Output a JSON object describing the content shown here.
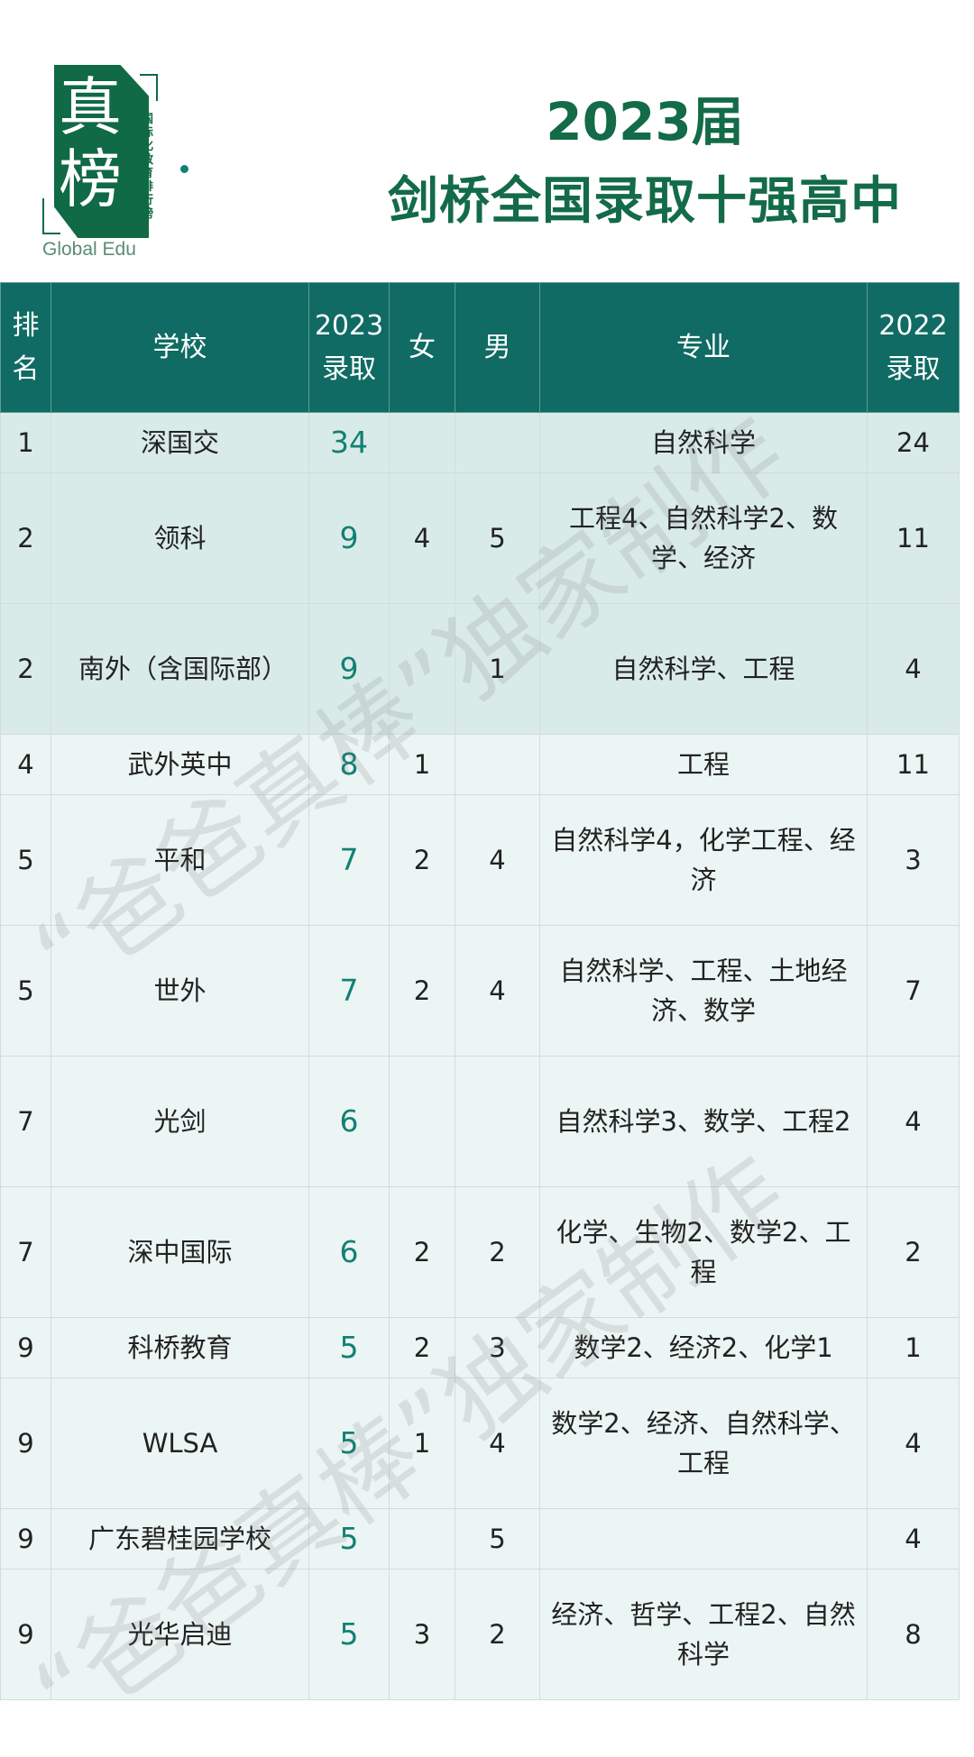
{
  "logo": {
    "chars": [
      "真",
      "榜"
    ],
    "subtitle": "国际化教育排行榜",
    "english": "Global Edu"
  },
  "title": {
    "line1": "2023届",
    "line2": "剑桥全国录取十强高中"
  },
  "watermark": "“爸爸真棒”独家制作",
  "colors": {
    "header_bg": "#0f6b63",
    "title": "#136b47",
    "highlight_number": "#138074",
    "top_rows_bg": "#d9ebe9",
    "rows_bg": "#ebf5f3"
  },
  "table": {
    "headers": [
      "排名",
      "学校",
      "2023录取",
      "女",
      "男",
      "专业",
      "2022录取"
    ],
    "rows": [
      {
        "rank": "1",
        "school": "深国交",
        "y2023": "34",
        "female": "",
        "male": "",
        "major": "自然科学",
        "y2022": "24"
      },
      {
        "rank": "2",
        "school": "领科",
        "y2023": "9",
        "female": "4",
        "male": "5",
        "major": "工程4、自然科学2、数学、经济",
        "y2022": "11"
      },
      {
        "rank": "2",
        "school": "南外（含国际部）",
        "y2023": "9",
        "female": "",
        "male": "1",
        "major": "自然科学、工程",
        "y2022": "4"
      },
      {
        "rank": "4",
        "school": "武外英中",
        "y2023": "8",
        "female": "1",
        "male": "",
        "major": "工程",
        "y2022": "11"
      },
      {
        "rank": "5",
        "school": "平和",
        "y2023": "7",
        "female": "2",
        "male": "4",
        "major": "自然科学4，化学工程、经济",
        "y2022": "3"
      },
      {
        "rank": "5",
        "school": "世外",
        "y2023": "7",
        "female": "2",
        "male": "4",
        "major": "自然科学、工程、土地经济、数学",
        "y2022": "7"
      },
      {
        "rank": "7",
        "school": "光剑",
        "y2023": "6",
        "female": "",
        "male": "",
        "major": "自然科学3、数学、工程2",
        "y2022": "4"
      },
      {
        "rank": "7",
        "school": "深中国际",
        "y2023": "6",
        "female": "2",
        "male": "2",
        "major": "化学、生物2、数学2、工程",
        "y2022": "2"
      },
      {
        "rank": "9",
        "school": "科桥教育",
        "y2023": "5",
        "female": "2",
        "male": "3",
        "major": "数学2、经济2、化学1",
        "y2022": "1"
      },
      {
        "rank": "9",
        "school": "WLSA",
        "y2023": "5",
        "female": "1",
        "male": "4",
        "major": "数学2、经济、自然科学、工程",
        "y2022": "4"
      },
      {
        "rank": "9",
        "school": "广东碧桂园学校",
        "y2023": "5",
        "female": "",
        "male": "5",
        "major": "",
        "y2022": "4"
      },
      {
        "rank": "9",
        "school": "光华启迪",
        "y2023": "5",
        "female": "3",
        "male": "2",
        "major": "经济、哲学、工程2、自然科学",
        "y2022": "8"
      }
    ]
  }
}
